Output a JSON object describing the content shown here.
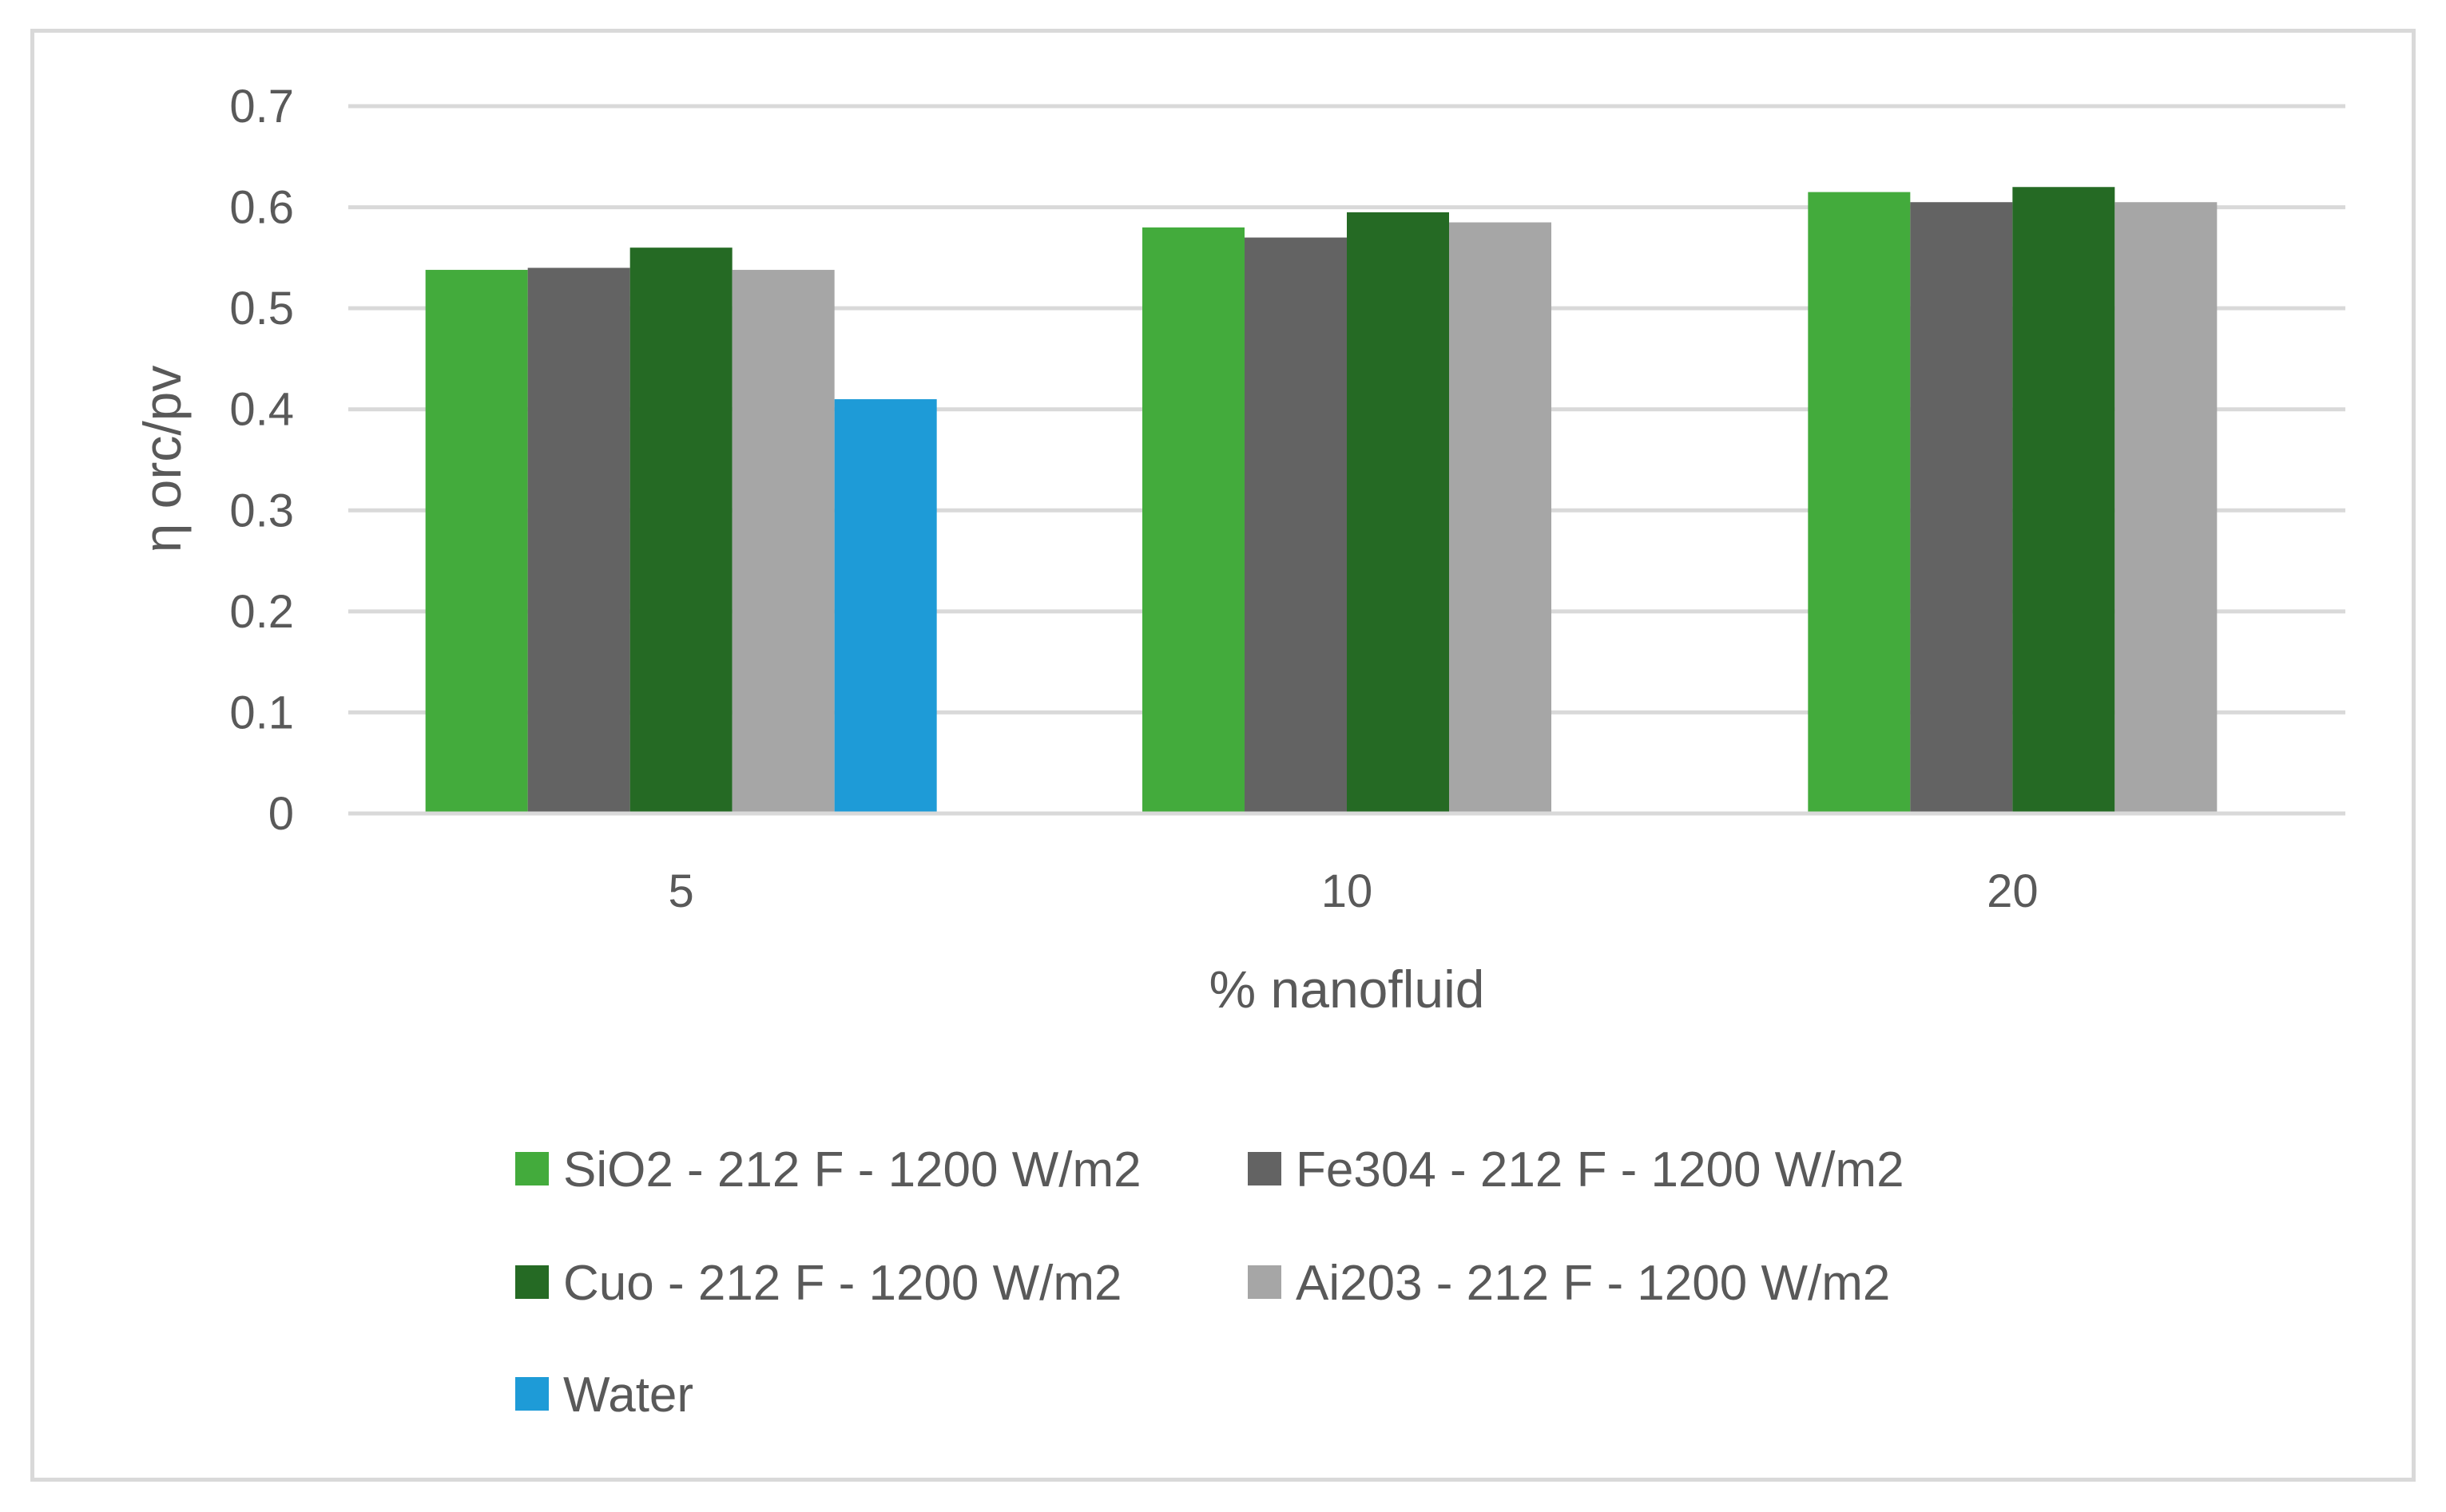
{
  "chart_data": {
    "type": "bar",
    "title": "",
    "xlabel": "% nanofluid",
    "ylabel": "η orc/pv",
    "categories": [
      "5",
      "10",
      "20"
    ],
    "ylim": [
      0,
      0.7
    ],
    "yticks": [
      0,
      0.1,
      0.2,
      0.3,
      0.4,
      0.5,
      0.6,
      0.7
    ],
    "ytick_labels": [
      "0",
      "0.1",
      "0.2",
      "0.3",
      "0.4",
      "0.5",
      "0.6",
      "0.7"
    ],
    "grid": true,
    "legend_position": "bottom",
    "series": [
      {
        "name": "SiO2 - 212 F - 1200 W/m2",
        "color": "#43ab3c",
        "values": [
          0.538,
          0.58,
          0.615
        ]
      },
      {
        "name": "Fe304 - 212 F - 1200 W/m2",
        "color": "#636363",
        "values": [
          0.54,
          0.57,
          0.605
        ]
      },
      {
        "name": "Cuo - 212 F - 1200 W/m2",
        "color": "#256a24",
        "values": [
          0.56,
          0.595,
          0.62
        ]
      },
      {
        "name": "Ai203 - 212 F - 1200 W/m2",
        "color": "#a6a6a6",
        "values": [
          0.538,
          0.585,
          0.605
        ]
      },
      {
        "name": "Water",
        "color": "#1e9bd7",
        "values": [
          0.41,
          null,
          null
        ]
      }
    ]
  }
}
